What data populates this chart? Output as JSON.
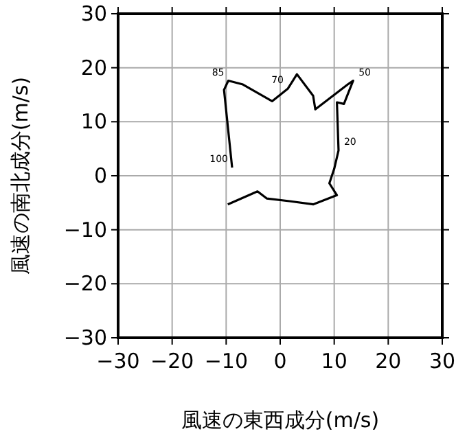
{
  "chart_data": {
    "type": "line",
    "xlabel": "風速の東西成分(m/s)",
    "ylabel": "風速の南北成分(m/s)",
    "x": [
      -9.7,
      -4.2,
      -2.5,
      1.7,
      6.1,
      10.5,
      9.1,
      10.0,
      10.8,
      10.5,
      11.8,
      13.5,
      12.5,
      6.5,
      6.1,
      3.1,
      1.4,
      -1.5,
      -6.9,
      -9.6,
      -10.4,
      -8.9
    ],
    "series": [
      {
        "color": "#000000",
        "values": [
          -5.3,
          -2.9,
          -4.2,
          -4.7,
          -5.3,
          -3.6,
          -1.4,
          1.3,
          4.7,
          13.6,
          13.3,
          17.6,
          16.9,
          12.3,
          14.8,
          18.8,
          16.1,
          13.8,
          16.9,
          17.6,
          15.9,
          1.5
        ]
      }
    ],
    "annotations": [
      {
        "text": "20",
        "x": 10.8,
        "y": 4.7
      },
      {
        "text": "50",
        "x": 13.5,
        "y": 17.6
      },
      {
        "text": "70",
        "x": 1.4,
        "y": 16.1
      },
      {
        "text": "85",
        "x": -9.6,
        "y": 17.6
      },
      {
        "text": "100",
        "x": -8.9,
        "y": 1.5
      }
    ],
    "xlim": [
      -30,
      30
    ],
    "ylim": [
      -30,
      30
    ],
    "xticks": [
      -30,
      -20,
      -10,
      0,
      10,
      20,
      30
    ],
    "yticks": [
      -30,
      -20,
      -10,
      0,
      10,
      20,
      30
    ],
    "grid": true,
    "marker": "none",
    "line_style": "solid"
  }
}
